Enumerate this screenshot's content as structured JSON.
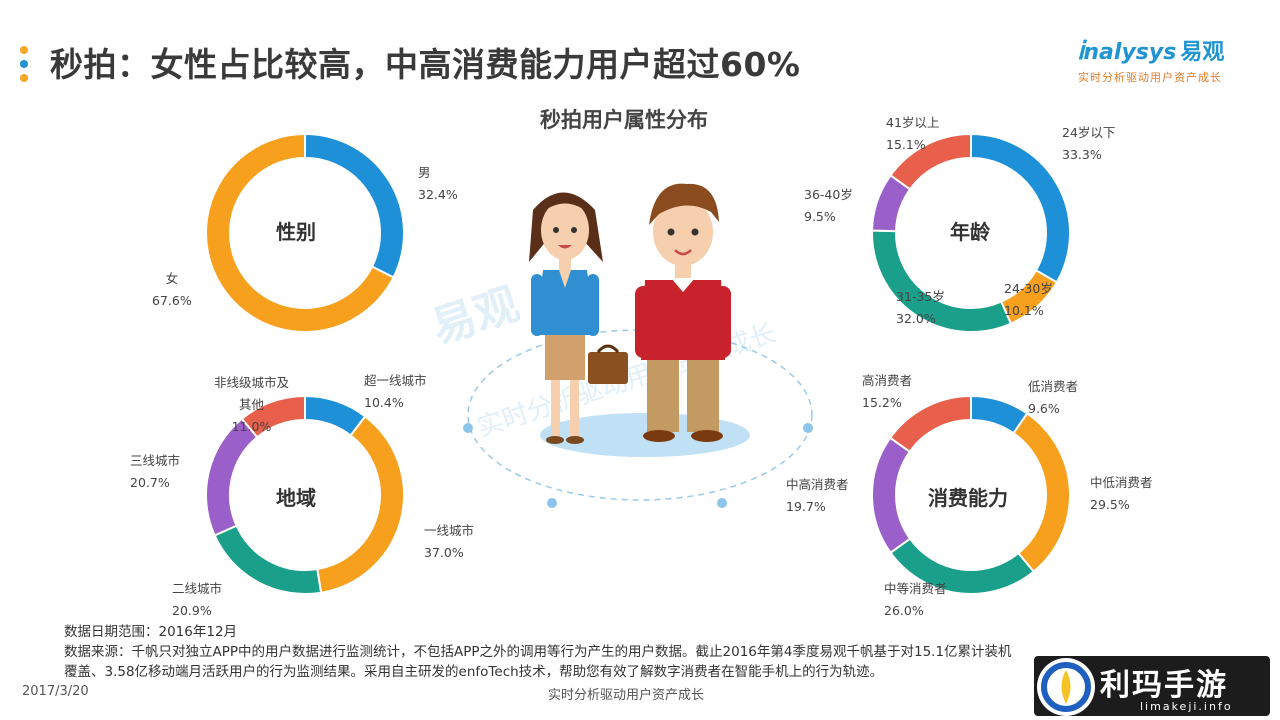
{
  "header": {
    "title": "秒拍：女性占比较高，中高消费能力用户超过60%",
    "dot_colors": [
      "#f5a623",
      "#1f94d2",
      "#f5a623"
    ]
  },
  "logo": {
    "name": "nalysys",
    "name_cn": "易观",
    "tagline": "实时分析驱动用户资产成长"
  },
  "subtitle": "秒拍用户属性分布",
  "watermark": {
    "brand": "易观",
    "tagline": "实时分析驱动用户资产成长"
  },
  "chart_data": [
    {
      "type": "pie",
      "center_label": "性别",
      "labels": [
        "男",
        "女"
      ],
      "values": [
        32.4,
        67.6
      ],
      "value_labels": [
        "32.4%",
        "67.6%"
      ],
      "colors": [
        "#1e90d8",
        "#f7a01d"
      ]
    },
    {
      "type": "pie",
      "center_label": "年龄",
      "labels": [
        "24岁以下",
        "24-30岁",
        "31-35岁",
        "36-40岁",
        "41岁以上"
      ],
      "values": [
        33.3,
        10.1,
        32.0,
        9.5,
        15.1
      ],
      "value_labels": [
        "33.3%",
        "10.1%",
        "32.0%",
        "9.5%",
        "15.1%"
      ],
      "colors": [
        "#1e90d8",
        "#f7a01d",
        "#1aa08a",
        "#9b5fc9",
        "#e8604c"
      ]
    },
    {
      "type": "pie",
      "center_label": "地域",
      "labels": [
        "超一线城市",
        "一线城市",
        "二线城市",
        "三线城市",
        "非线级城市及其他"
      ],
      "label_lines": [
        [
          "超一线城市"
        ],
        [
          "一线城市"
        ],
        [
          "二线城市"
        ],
        [
          "三线城市"
        ],
        [
          "非线级城市及",
          "其他"
        ]
      ],
      "values": [
        10.4,
        37.0,
        20.9,
        20.7,
        11.0
      ],
      "value_labels": [
        "10.4%",
        "37.0%",
        "20.9%",
        "20.7%",
        "11.0%"
      ],
      "colors": [
        "#1e90d8",
        "#f7a01d",
        "#1aa08a",
        "#9b5fc9",
        "#e8604c"
      ]
    },
    {
      "type": "pie",
      "center_label": "消费能力",
      "labels": [
        "低消费者",
        "中低消费者",
        "中等消费者",
        "中高消费者",
        "高消费者"
      ],
      "values": [
        9.6,
        29.5,
        26.0,
        19.7,
        15.2
      ],
      "value_labels": [
        "9.6%",
        "29.5%",
        "26.0%",
        "19.7%",
        "15.2%"
      ],
      "colors": [
        "#1e90d8",
        "#f7a01d",
        "#1aa08a",
        "#9b5fc9",
        "#e8604c"
      ]
    }
  ],
  "footer": {
    "date_range": "数据日期范围：2016年12月",
    "source_line1": "数据来源：千帆只对独立APP中的用户数据进行监测统计，不包括APP之外的调用等行为产生的用户数据。截止2016年第4季度易观千帆基于对15.1亿累计装机",
    "source_line2": "覆盖、3.58亿移动端月活跃用户的行为监测结果。采用自主研发的enfoTech技术，帮助您有效了解数字消费者在智能手机上的行为轨迹。",
    "date": "2017/3/20",
    "center_text": "实时分析驱动用户资产成长"
  },
  "brand_badge": {
    "name": "利玛手游",
    "url": "limakeji.info"
  }
}
